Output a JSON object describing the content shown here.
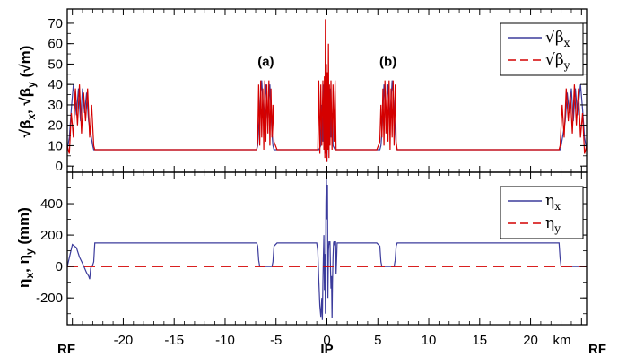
{
  "chart_data": {
    "type": "line",
    "x_tick_labels": [
      "-20",
      "-15",
      "-10",
      "-5",
      "0",
      "5",
      "10",
      "15",
      "20"
    ],
    "x_tick_values": [
      -20,
      -15,
      -10,
      -5,
      0,
      5,
      10,
      15,
      20
    ],
    "x_unit_label": "km",
    "x_markers": [
      {
        "label": "RF",
        "x": -25.5
      },
      {
        "label": "IP",
        "x": 0
      },
      {
        "label": "RF",
        "x": 25.5
      }
    ],
    "xlim": [
      -25.5,
      25.5
    ],
    "colors": {
      "x_series": "#3b3b9c",
      "y_series": "#d40000"
    },
    "panels": [
      {
        "ylabel_parts": [
          "√β",
          "x",
          ", √β",
          "y",
          " (√m)"
        ],
        "ylim": [
          -3,
          77
        ],
        "y_tick_labels": [
          "0",
          "10",
          "20",
          "30",
          "40",
          "50",
          "60",
          "70"
        ],
        "y_tick_values": [
          0,
          10,
          20,
          30,
          40,
          50,
          60,
          70
        ],
        "annotations": [
          {
            "text": "(a)",
            "x": -6.0,
            "y": 49
          },
          {
            "text": "(b)",
            "x": 6.0,
            "y": 49
          }
        ],
        "legend": [
          {
            "text": "√β",
            "sub": "x",
            "style": "solid"
          },
          {
            "text": "√β",
            "sub": "y",
            "style": "dashed"
          }
        ],
        "legend_position": "top-right",
        "series": [
          {
            "style": "solid",
            "color_key": "x_series",
            "x": [
              -25.5,
              -25.3,
              -25.1,
              -24.9,
              -24.6,
              -24.4,
              -24.2,
              -24.0,
              -23.8,
              -23.6,
              -23.4,
              -23.2,
              -23.0,
              -22.9,
              -22.8,
              -6.9,
              -6.8,
              -6.6,
              -6.4,
              -6.2,
              -6.0,
              -5.8,
              -5.6,
              -5.4,
              -5.3,
              -5.2,
              -4.9,
              -0.8,
              -0.6,
              -0.5,
              -0.4,
              -0.3,
              -0.2,
              -0.1,
              0.0,
              0.1,
              0.2,
              0.3,
              0.4,
              0.5,
              0.6,
              0.8,
              4.9,
              5.2,
              5.3,
              5.4,
              5.6,
              5.8,
              6.0,
              6.2,
              6.4,
              6.6,
              6.8,
              6.9,
              22.8,
              22.9,
              23.0,
              23.2,
              23.4,
              23.6,
              23.8,
              24.0,
              24.2,
              24.4,
              24.6,
              24.9,
              25.1,
              25.3,
              25.5
            ],
            "y": [
              8,
              14,
              28,
              40,
              25,
              38,
              22,
              38,
              26,
              36,
              22,
              16,
              10,
              8,
              8,
              8,
              10,
              28,
              42,
              24,
              40,
              22,
              40,
              16,
              10,
              8,
              8,
              8,
              10,
              30,
              12,
              40,
              6,
              24,
              2,
              28,
              8,
              38,
              14,
              26,
              10,
              8,
              8,
              8,
              10,
              16,
              40,
              22,
              40,
              24,
              42,
              28,
              10,
              8,
              8,
              8,
              10,
              16,
              22,
              36,
              26,
              38,
              22,
              38,
              25,
              40,
              28,
              14,
              8
            ]
          },
          {
            "style": "solid",
            "color_key": "y_series",
            "x": [
              -25.5,
              -25.3,
              -25.1,
              -24.9,
              -24.7,
              -24.5,
              -24.3,
              -24.1,
              -23.9,
              -23.7,
              -23.5,
              -23.3,
              -23.1,
              -22.9,
              -22.8,
              -6.9,
              -6.8,
              -6.7,
              -6.6,
              -6.5,
              -6.4,
              -6.3,
              -6.2,
              -6.1,
              -6.0,
              -5.9,
              -5.8,
              -5.7,
              -5.6,
              -5.5,
              -5.4,
              -5.3,
              -5.2,
              -4.9,
              -0.9,
              -0.8,
              -0.7,
              -0.6,
              -0.5,
              -0.4,
              -0.3,
              -0.25,
              -0.2,
              -0.15,
              -0.1,
              -0.05,
              0.0,
              0.05,
              0.1,
              0.15,
              0.2,
              0.25,
              0.3,
              0.4,
              0.5,
              0.6,
              0.7,
              0.8,
              0.9,
              4.9,
              5.2,
              5.3,
              5.4,
              5.5,
              5.6,
              5.7,
              5.8,
              5.9,
              6.0,
              6.1,
              6.2,
              6.3,
              6.4,
              6.5,
              6.6,
              6.7,
              6.8,
              6.9,
              22.8,
              22.9,
              23.1,
              23.3,
              23.5,
              23.7,
              23.9,
              24.1,
              24.3,
              24.5,
              24.7,
              24.9,
              25.1,
              25.3,
              25.5
            ],
            "y": [
              10,
              6,
              26,
              14,
              38,
              20,
              40,
              16,
              36,
              22,
              38,
              14,
              30,
              10,
              8,
              8,
              12,
              40,
              10,
              42,
              14,
              38,
              8,
              42,
              12,
              40,
              16,
              42,
              10,
              38,
              14,
              30,
              12,
              8,
              8,
              42,
              6,
              40,
              10,
              42,
              8,
              44,
              4,
              72,
              6,
              50,
              2,
              46,
              8,
              60,
              4,
              40,
              10,
              42,
              8,
              40,
              12,
              42,
              8,
              8,
              12,
              30,
              14,
              38,
              10,
              42,
              16,
              40,
              12,
              42,
              8,
              38,
              14,
              42,
              10,
              40,
              12,
              8,
              8,
              10,
              30,
              14,
              38,
              22,
              36,
              16,
              40,
              20,
              38,
              14,
              26,
              6,
              10
            ]
          }
        ]
      },
      {
        "ylabel_parts": [
          "η",
          "x",
          ", η",
          "y",
          " (mm)"
        ],
        "ylim": [
          -370,
          600
        ],
        "y_tick_labels": [
          "-200",
          "0",
          "200",
          "400"
        ],
        "y_tick_values": [
          -200,
          0,
          200,
          400
        ],
        "annotations": [],
        "legend": [
          {
            "text": "η",
            "sub": "x",
            "style": "solid"
          },
          {
            "text": "η",
            "sub": "y",
            "style": "dashed"
          }
        ],
        "legend_position": "top-right",
        "series": [
          {
            "style": "solid",
            "color_key": "x_series",
            "x": [
              -25.5,
              -25.0,
              -24.6,
              -24.3,
              -24.0,
              -23.8,
              -23.6,
              -23.4,
              -23.3,
              -23.2,
              -23.0,
              -22.9,
              -22.8,
              -6.9,
              -6.8,
              -6.7,
              -6.6,
              -5.4,
              -5.3,
              -5.2,
              -4.9,
              -1.0,
              -0.9,
              -0.8,
              -0.7,
              -0.6,
              -0.5,
              -0.45,
              -0.4,
              -0.35,
              -0.3,
              -0.25,
              -0.2,
              -0.15,
              -0.1,
              -0.05,
              0.0,
              0.05,
              0.1,
              0.15,
              0.2,
              0.25,
              0.3,
              0.35,
              0.4,
              0.45,
              0.5,
              0.55,
              0.6,
              0.65,
              0.7,
              0.75,
              0.8,
              0.85,
              0.9,
              0.95,
              1.0,
              1.1,
              4.9,
              5.2,
              5.3,
              5.4,
              6.6,
              6.7,
              6.8,
              6.9,
              22.8,
              22.9,
              23.0,
              25.5
            ],
            "y": [
              0,
              140,
              120,
              60,
              20,
              -10,
              -40,
              -60,
              -80,
              -10,
              10,
              30,
              150,
              150,
              130,
              40,
              0,
              0,
              30,
              130,
              150,
              150,
              100,
              -80,
              -250,
              -320,
              -200,
              -340,
              -100,
              50,
              200,
              -150,
              80,
              -300,
              400,
              580,
              300,
              520,
              -200,
              100,
              160,
              140,
              160,
              -20,
              -140,
              -60,
              -330,
              -100,
              60,
              150,
              160,
              140,
              130,
              160,
              -50,
              40,
              150,
              150,
              150,
              130,
              30,
              0,
              0,
              40,
              130,
              150,
              150,
              50,
              0,
              0
            ]
          },
          {
            "style": "dashed",
            "color_key": "y_series",
            "x": [
              -25.5,
              25.5
            ],
            "y": [
              0,
              0
            ]
          }
        ]
      }
    ]
  }
}
